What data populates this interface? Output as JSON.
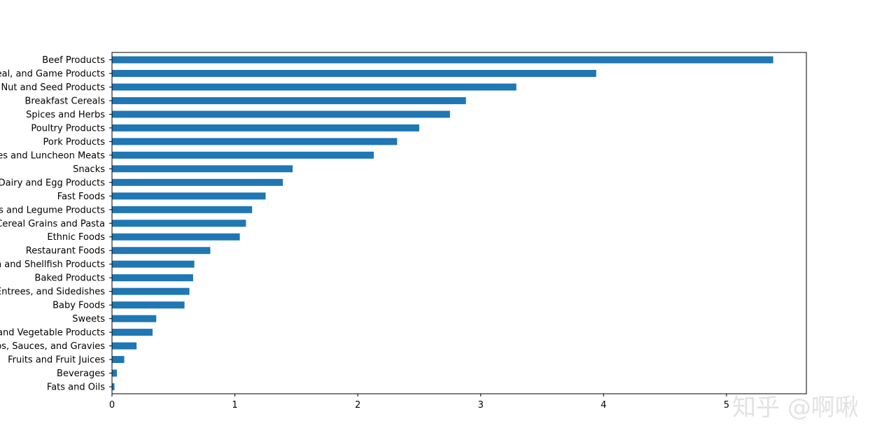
{
  "colors": {
    "bar": "#1f77b4",
    "axis": "#000000",
    "watermark": "#e2e2e2"
  },
  "watermark": {
    "text": "知乎 @啊啾"
  },
  "chart_data": {
    "type": "bar",
    "orientation": "horizontal",
    "title": "",
    "xlabel": "",
    "ylabel": "",
    "xlim": [
      0,
      5.65
    ],
    "xticks": [
      0,
      1,
      2,
      3,
      4,
      5
    ],
    "grid": false,
    "categories": [
      "Beef Products",
      "Lamb, Veal, and Game Products",
      "Nut and Seed Products",
      "Breakfast Cereals",
      "Spices and Herbs",
      "Poultry Products",
      "Pork Products",
      "Sausages and Luncheon Meats",
      "Snacks",
      "Dairy and Egg Products",
      "Fast Foods",
      "Legumes and Legume Products",
      "Cereal Grains and Pasta",
      "Ethnic Foods",
      "Restaurant Foods",
      "Finfish and Shellfish Products",
      "Baked Products",
      "Meals, Entrees, and Sidedishes",
      "Baby Foods",
      "Sweets",
      "Vegetables and Vegetable Products",
      "Soups, Sauces, and Gravies",
      "Fruits and Fruit Juices",
      "Beverages",
      "Fats and Oils"
    ],
    "values": [
      5.38,
      3.94,
      3.29,
      2.88,
      2.75,
      2.5,
      2.32,
      2.13,
      1.47,
      1.39,
      1.25,
      1.14,
      1.09,
      1.04,
      0.8,
      0.67,
      0.66,
      0.63,
      0.59,
      0.36,
      0.33,
      0.2,
      0.1,
      0.04,
      0.02
    ]
  }
}
